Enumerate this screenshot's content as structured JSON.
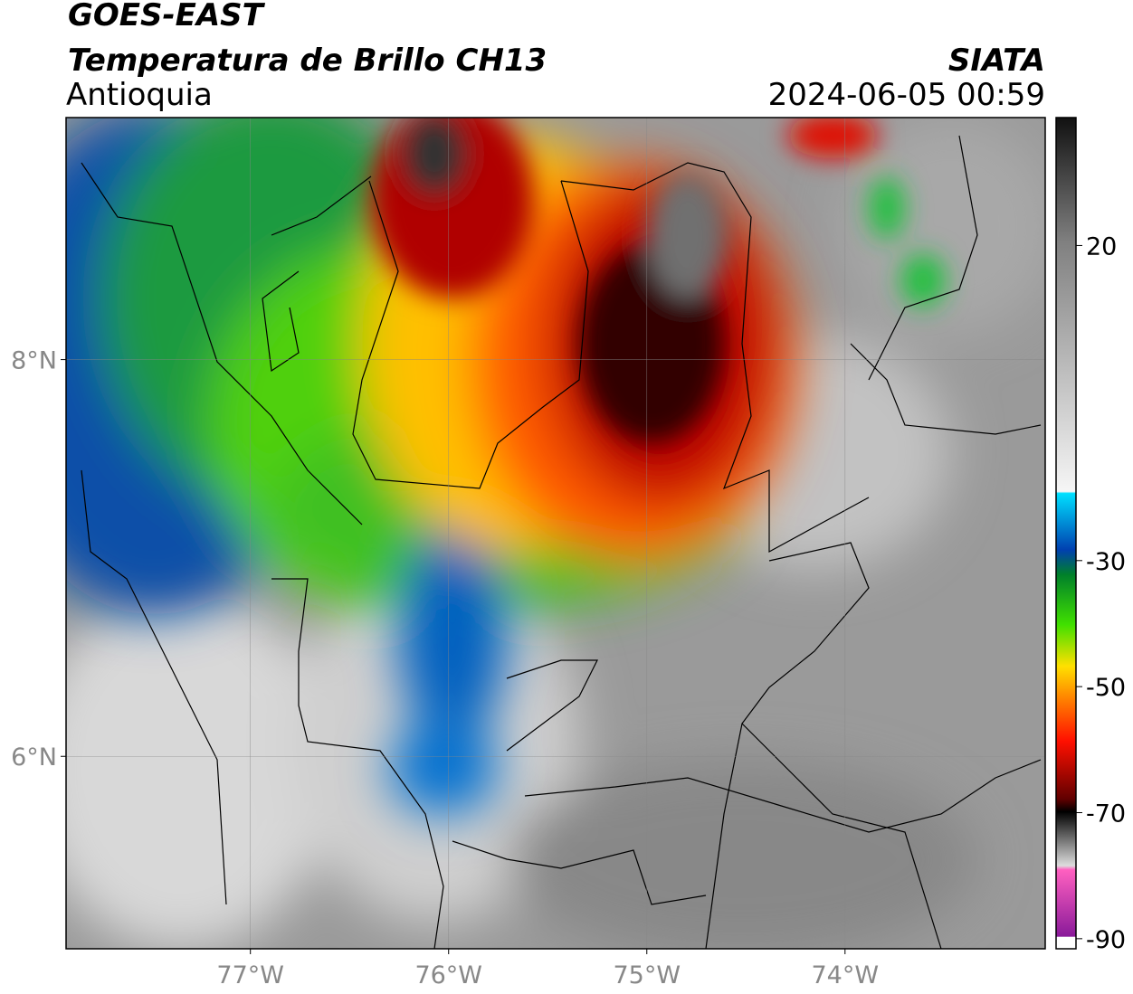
{
  "header": {
    "title": "GOES-EAST",
    "subtitle": "Temperatura de Brillo CH13",
    "region": "Antioquia",
    "source": "SIATA",
    "datetime": "2024-06-05 00:59"
  },
  "map": {
    "xlim": [
      -77.93,
      -72.99
    ],
    "ylim": [
      5.03,
      9.22
    ],
    "xticks": [
      {
        "value": -77,
        "label": "77°W"
      },
      {
        "value": -76,
        "label": "76°W"
      },
      {
        "value": -75,
        "label": "75°W"
      },
      {
        "value": -74,
        "label": "74°W"
      }
    ],
    "yticks": [
      {
        "value": 8,
        "label": "8°N"
      },
      {
        "value": 6,
        "label": "6°N"
      }
    ],
    "grid": true
  },
  "colorbar": {
    "lim": [
      -91.6,
      40.3
    ],
    "ticks": [
      20,
      -30,
      -50,
      -70,
      -90
    ]
  }
}
